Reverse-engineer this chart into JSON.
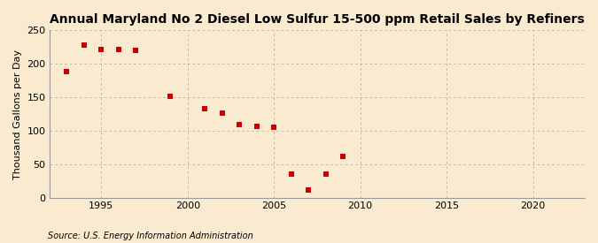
{
  "title": "Annual Maryland No 2 Diesel Low Sulfur 15-500 ppm Retail Sales by Refiners",
  "ylabel": "Thousand Gallons per Day",
  "source": "Source: U.S. Energy Information Administration",
  "x_data": [
    1993,
    1994,
    1995,
    1996,
    1997,
    1999,
    2001,
    2002,
    2003,
    2004,
    2005,
    2006,
    2007,
    2008,
    2009
  ],
  "y_data": [
    188,
    228,
    222,
    222,
    220,
    152,
    133,
    127,
    109,
    107,
    105,
    35,
    11,
    35,
    62
  ],
  "marker_color": "#cc0000",
  "marker": "s",
  "marker_size": 4,
  "bg_color": "#faebd0",
  "grid_color": "#999999",
  "xlim": [
    1992,
    2023
  ],
  "ylim": [
    0,
    250
  ],
  "xticks": [
    1995,
    2000,
    2005,
    2010,
    2015,
    2020
  ],
  "yticks": [
    0,
    50,
    100,
    150,
    200,
    250
  ],
  "title_fontsize": 10,
  "label_fontsize": 8,
  "tick_fontsize": 8,
  "source_fontsize": 7
}
